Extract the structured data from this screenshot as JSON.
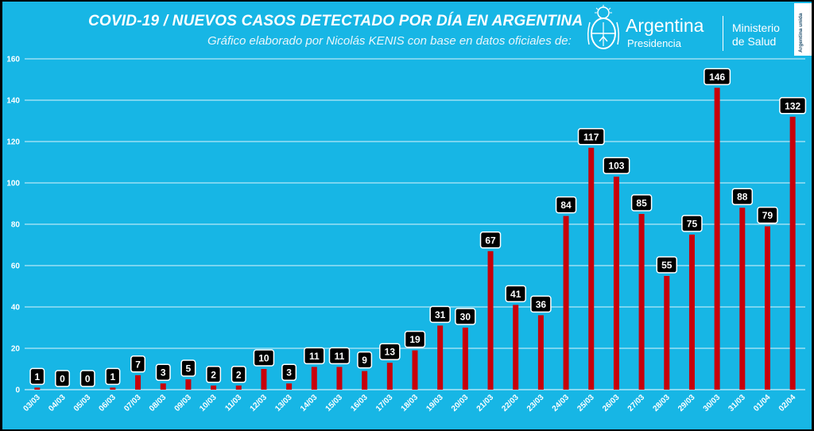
{
  "header": {
    "title": "COVID-19  /  NUEVOS CASOS DETECTADO POR DÍA EN ARGENTINA",
    "subtitle": "Gráfico elaborado por Nicolás KENIS con base en datos oficiales de:"
  },
  "logos": {
    "presidencia_word": "Argentina",
    "presidencia_sub": "Presidencia",
    "ministry_line1": "Ministerio",
    "ministry_line2": "de Salud",
    "badge_text": "Argentina unida"
  },
  "colors": {
    "background": "#17b6e5",
    "bar": "#c8000a",
    "label_box": "#000000",
    "grid": "#ffffff"
  },
  "chart_data": {
    "type": "bar",
    "title": "COVID-19  /  NUEVOS CASOS DETECTADO POR DÍA EN ARGENTINA",
    "categories": [
      "03/03",
      "04/03",
      "05/03",
      "06/03",
      "07/03",
      "08/03",
      "09/03",
      "10/03",
      "11/03",
      "12/03",
      "13/03",
      "14/03",
      "15/03",
      "16/03",
      "17/03",
      "18/03",
      "19/03",
      "20/03",
      "21/03",
      "22/03",
      "23/03",
      "24/03",
      "25/03",
      "26/03",
      "27/03",
      "28/03",
      "29/03",
      "30/03",
      "31/03",
      "01/04",
      "02/04"
    ],
    "values": [
      1,
      0,
      0,
      1,
      7,
      3,
      5,
      2,
      2,
      10,
      3,
      11,
      11,
      9,
      13,
      19,
      31,
      30,
      67,
      41,
      36,
      84,
      117,
      103,
      85,
      55,
      75,
      146,
      88,
      79,
      132
    ],
    "xlabel": "",
    "ylabel": "",
    "ylim": [
      0,
      160
    ],
    "yticks": [
      0,
      20,
      40,
      60,
      80,
      100,
      120,
      140,
      160
    ],
    "grid": true,
    "data_labels": true,
    "legend": "none"
  }
}
